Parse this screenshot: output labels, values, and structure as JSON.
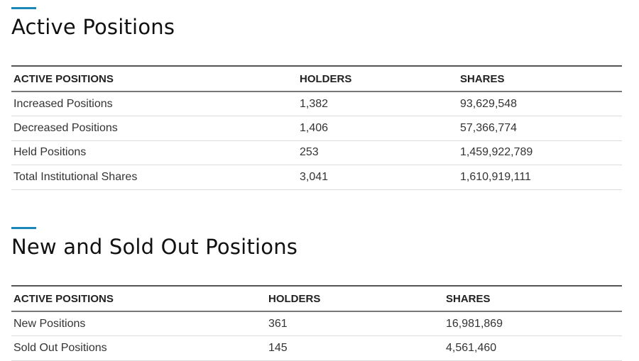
{
  "active_section": {
    "title": "Active Positions",
    "headers": [
      "ACTIVE POSITIONS",
      "HOLDERS",
      "SHARES"
    ],
    "rows": [
      {
        "label": "Increased Positions",
        "holders": "1,382",
        "shares": "93,629,548"
      },
      {
        "label": "Decreased Positions",
        "holders": "1,406",
        "shares": "57,366,774"
      },
      {
        "label": "Held Positions",
        "holders": "253",
        "shares": "1,459,922,789"
      },
      {
        "label": "Total Institutional Shares",
        "holders": "3,041",
        "shares": "1,610,919,111"
      }
    ]
  },
  "new_sold_section": {
    "title": "New and Sold Out Positions",
    "headers": [
      "ACTIVE POSITIONS",
      "HOLDERS",
      "SHARES"
    ],
    "rows": [
      {
        "label": "New Positions",
        "holders": "361",
        "shares": "16,981,869"
      },
      {
        "label": "Sold Out Positions",
        "holders": "145",
        "shares": "4,561,460"
      }
    ]
  },
  "colors": {
    "accent": "#1a88b8"
  }
}
